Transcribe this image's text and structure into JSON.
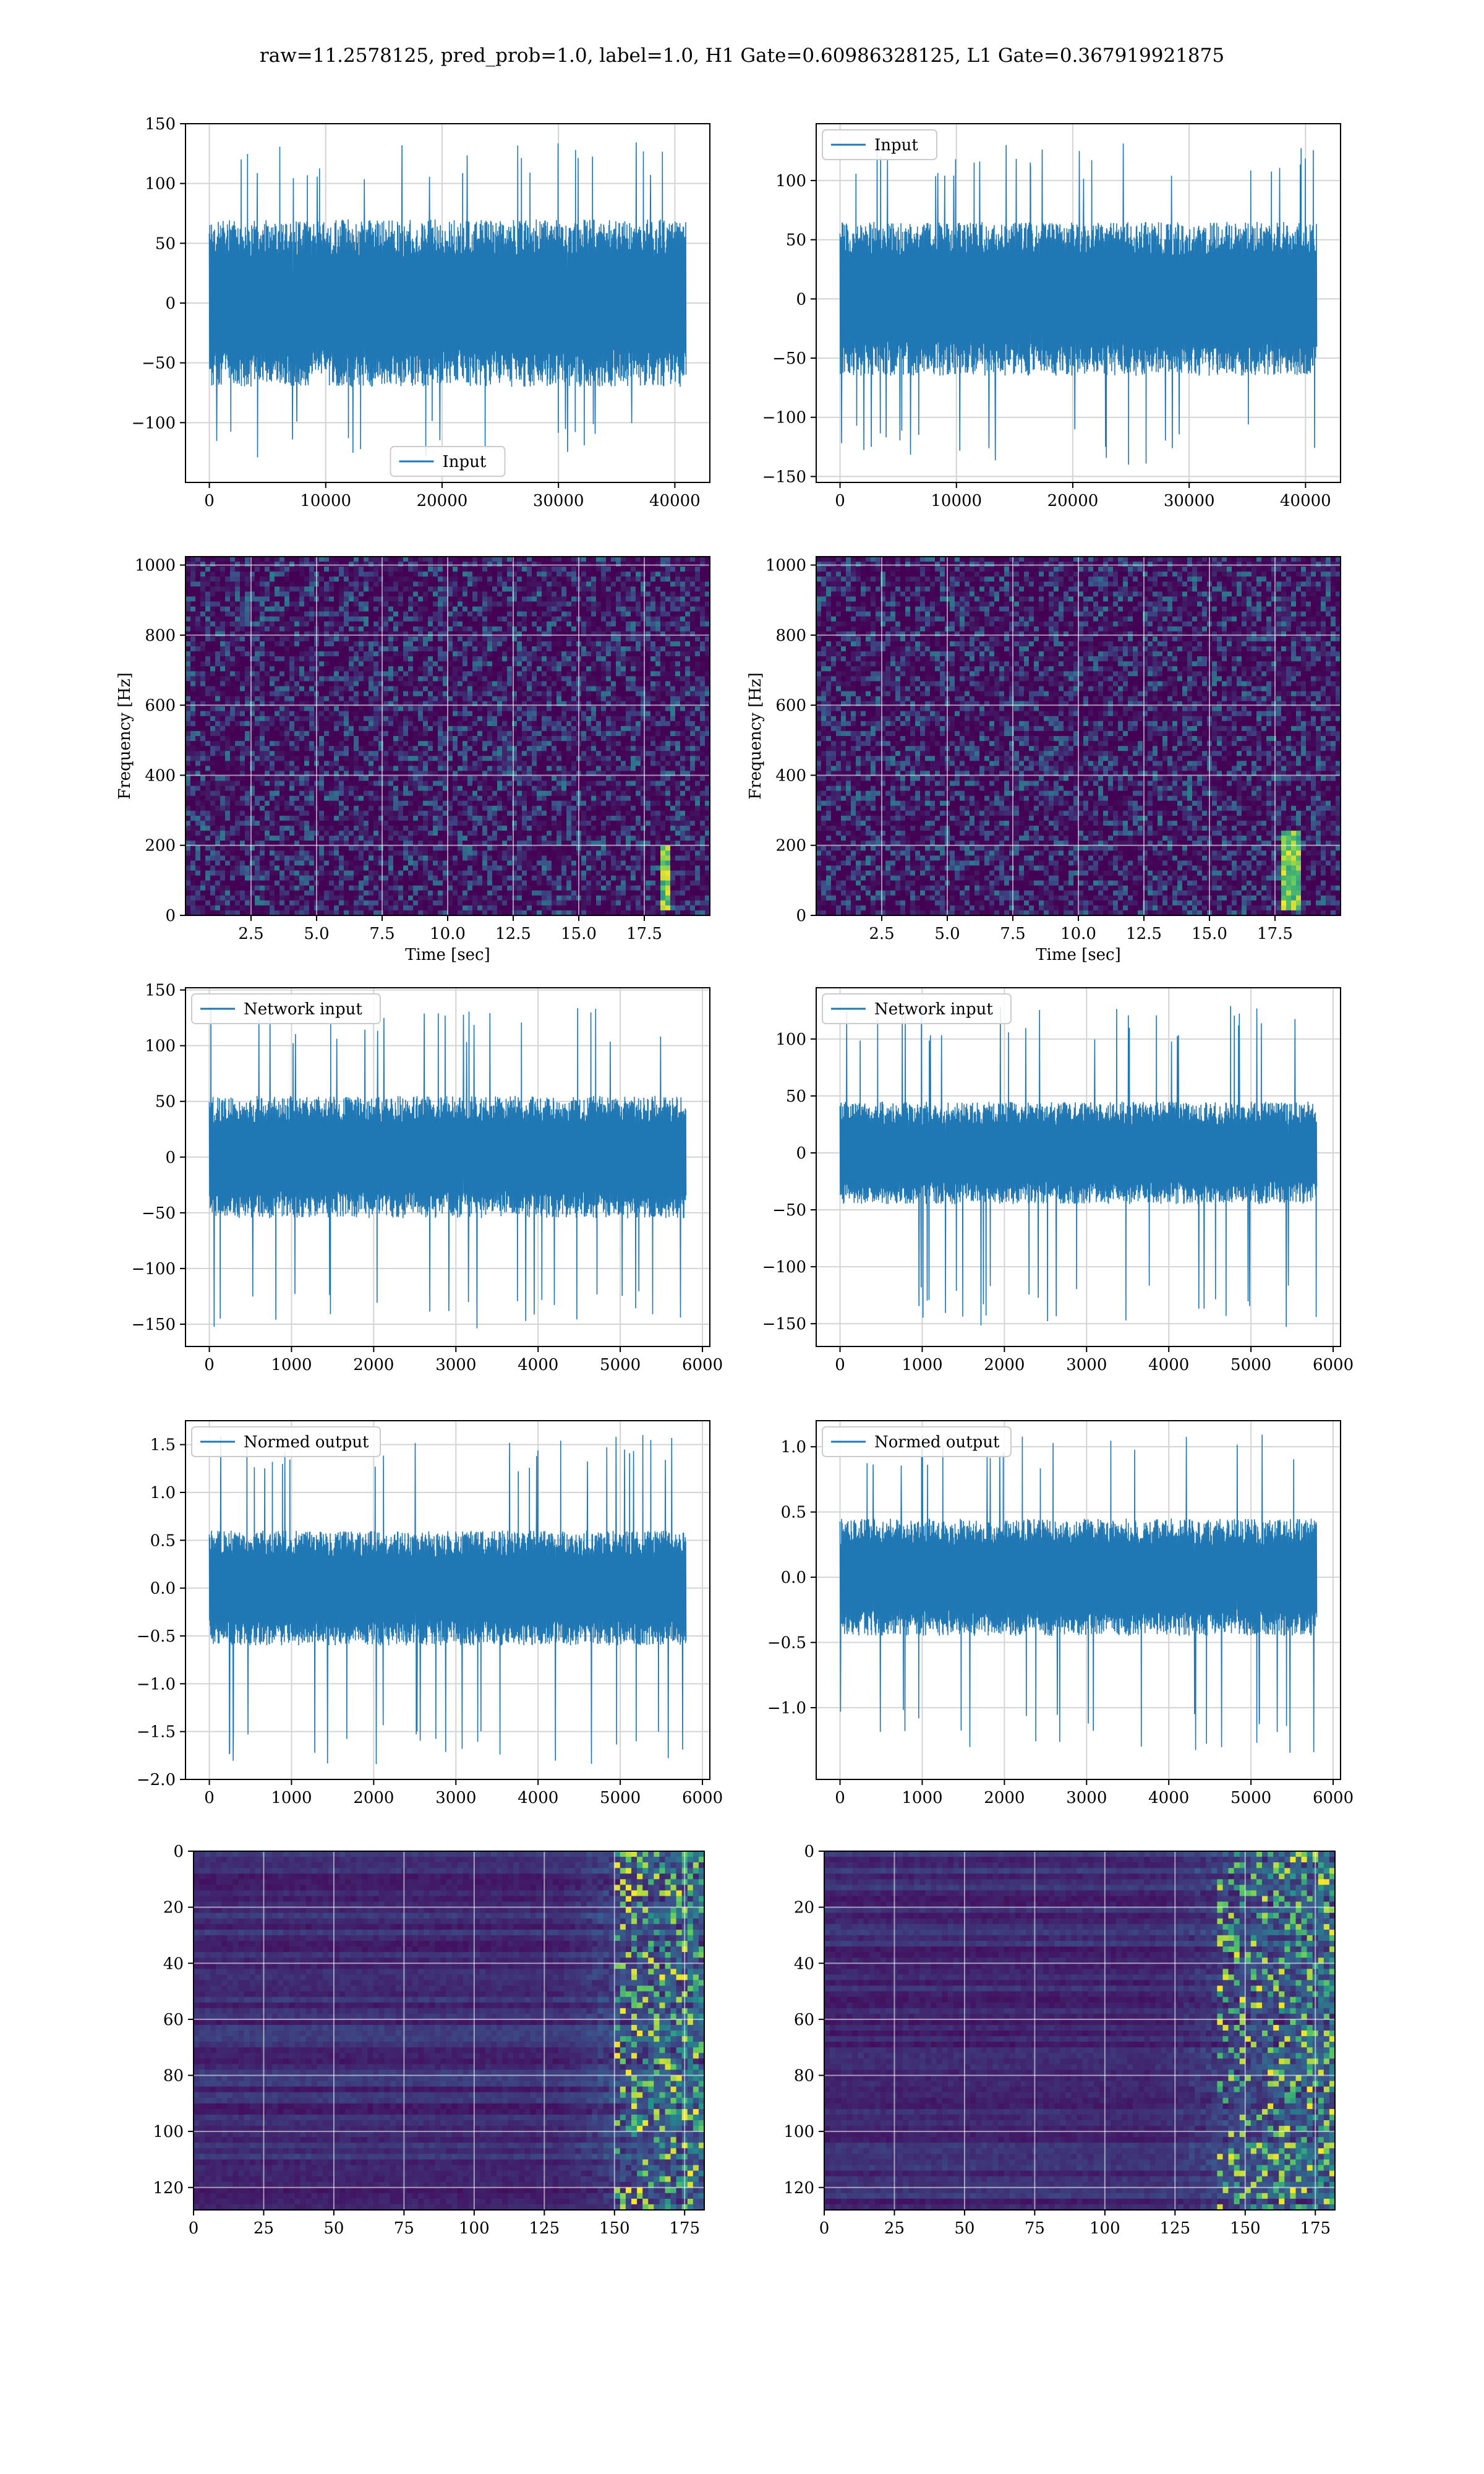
{
  "figure": {
    "title": "raw=11.2578125, pred_prob=1.0, label=1.0, H1 Gate=0.60986328125, L1 Gate=0.367919921875"
  },
  "colors": {
    "line": "#1f77b4",
    "viridis_low": "#440154",
    "viridis_mid": "#21918c",
    "viridis_high": "#fde725"
  },
  "chart_data": [
    {
      "id": "h1-input",
      "type": "line",
      "series": [
        {
          "name": "Input",
          "n": 40960,
          "body_amplitude": 70,
          "spike_max": 135,
          "spike_min": -130
        }
      ],
      "xlim": [
        -2048,
        43008
      ],
      "ylim": [
        -150,
        150
      ],
      "xticks": [
        0,
        10000,
        20000,
        30000,
        40000
      ],
      "yticks": [
        -100,
        -50,
        0,
        50,
        100,
        150
      ],
      "grid": true,
      "legend": "bottom-center",
      "xlabel": "",
      "ylabel": ""
    },
    {
      "id": "l1-input",
      "type": "line",
      "series": [
        {
          "name": "Input",
          "n": 40960,
          "body_amplitude": 65,
          "spike_max": 135,
          "spike_min": -140
        }
      ],
      "xlim": [
        -2048,
        43008
      ],
      "ylim": [
        -155,
        148
      ],
      "xticks": [
        0,
        10000,
        20000,
        30000,
        40000
      ],
      "yticks": [
        -150,
        -100,
        -50,
        0,
        50,
        100
      ],
      "grid": true,
      "legend": "top-left",
      "xlabel": "",
      "ylabel": ""
    },
    {
      "id": "h1-spectrogram",
      "type": "heatmap",
      "colormap": "viridis",
      "xlim": [
        0,
        20
      ],
      "ylim": [
        0,
        1024
      ],
      "xticks": [
        2.5,
        5.0,
        7.5,
        10.0,
        12.5,
        15.0,
        17.5
      ],
      "yticks": [
        0,
        200,
        400,
        600,
        800,
        1000
      ],
      "xlabel": "Time [sec]",
      "ylabel": "Frequency [Hz]",
      "grid": true,
      "chirp": {
        "t_start": 18.2,
        "t_end": 18.4,
        "f_low": 20,
        "f_high": 200
      }
    },
    {
      "id": "l1-spectrogram",
      "type": "heatmap",
      "colormap": "viridis",
      "xlim": [
        0,
        20
      ],
      "ylim": [
        0,
        1024
      ],
      "xticks": [
        2.5,
        5.0,
        7.5,
        10.0,
        12.5,
        15.0,
        17.5
      ],
      "yticks": [
        0,
        200,
        400,
        600,
        800,
        1000
      ],
      "xlabel": "Time [sec]",
      "ylabel": "Frequency [Hz]",
      "grid": true,
      "chirp": {
        "t_start": 17.9,
        "t_end": 18.3,
        "f_low": 20,
        "f_high": 240
      }
    },
    {
      "id": "h1-network-input",
      "type": "line",
      "series": [
        {
          "name": "Network input",
          "n": 5800,
          "body_amplitude": 55,
          "spike_max": 135,
          "spike_min": -155
        }
      ],
      "xlim": [
        -290,
        6090
      ],
      "ylim": [
        -170,
        152
      ],
      "xticks": [
        0,
        1000,
        2000,
        3000,
        4000,
        5000,
        6000
      ],
      "yticks": [
        -150,
        -100,
        -50,
        0,
        50,
        100,
        150
      ],
      "grid": true,
      "legend": "top-left",
      "xlabel": "",
      "ylabel": ""
    },
    {
      "id": "l1-network-input",
      "type": "line",
      "series": [
        {
          "name": "Network input",
          "n": 5800,
          "body_amplitude": 45,
          "spike_max": 130,
          "spike_min": -155
        }
      ],
      "xlim": [
        -290,
        6090
      ],
      "ylim": [
        -170,
        145
      ],
      "xticks": [
        0,
        1000,
        2000,
        3000,
        4000,
        5000,
        6000
      ],
      "yticks": [
        -150,
        -100,
        -50,
        0,
        50,
        100
      ],
      "grid": true,
      "legend": "top-left",
      "xlabel": "",
      "ylabel": ""
    },
    {
      "id": "h1-normed-output",
      "type": "line",
      "series": [
        {
          "name": "Normed output",
          "n": 5800,
          "body_amplitude": 0.6,
          "spike_max": 1.6,
          "spike_min": -1.85
        }
      ],
      "xlim": [
        -290,
        6090
      ],
      "ylim": [
        -2.0,
        1.75
      ],
      "xticks": [
        0,
        1000,
        2000,
        3000,
        4000,
        5000,
        6000
      ],
      "yticks": [
        -2.0,
        -1.5,
        -1.0,
        -0.5,
        0.0,
        0.5,
        1.0,
        1.5
      ],
      "grid": true,
      "legend": "top-left",
      "xlabel": "",
      "ylabel": ""
    },
    {
      "id": "l1-normed-output",
      "type": "line",
      "series": [
        {
          "name": "Normed output",
          "n": 5800,
          "body_amplitude": 0.45,
          "spike_max": 1.1,
          "spike_min": -1.35
        }
      ],
      "xlim": [
        -290,
        6090
      ],
      "ylim": [
        -1.55,
        1.2
      ],
      "xticks": [
        0,
        1000,
        2000,
        3000,
        4000,
        5000,
        6000
      ],
      "yticks": [
        -1.0,
        -0.5,
        0.0,
        0.5,
        1.0
      ],
      "grid": true,
      "legend": "top-left",
      "xlabel": "",
      "ylabel": ""
    },
    {
      "id": "h1-feature-map",
      "type": "heatmap",
      "colormap": "viridis",
      "rows": 128,
      "cols": 182,
      "xlim": [
        0,
        182
      ],
      "ylim": [
        128,
        0
      ],
      "xticks": [
        0,
        25,
        50,
        75,
        100,
        125,
        150,
        175
      ],
      "yticks": [
        0,
        20,
        40,
        60,
        80,
        100,
        120
      ],
      "grid": true,
      "xlabel": "",
      "ylabel": "",
      "bright_band": {
        "col_start": 150,
        "col_end": 182
      }
    },
    {
      "id": "l1-feature-map",
      "type": "heatmap",
      "colormap": "viridis",
      "rows": 128,
      "cols": 182,
      "xlim": [
        0,
        182
      ],
      "ylim": [
        128,
        0
      ],
      "xticks": [
        0,
        25,
        50,
        75,
        100,
        125,
        150,
        175
      ],
      "yticks": [
        0,
        20,
        40,
        60,
        80,
        100,
        120
      ],
      "grid": true,
      "xlabel": "",
      "ylabel": "",
      "bright_band": {
        "col_start": 140,
        "col_end": 182
      }
    }
  ]
}
